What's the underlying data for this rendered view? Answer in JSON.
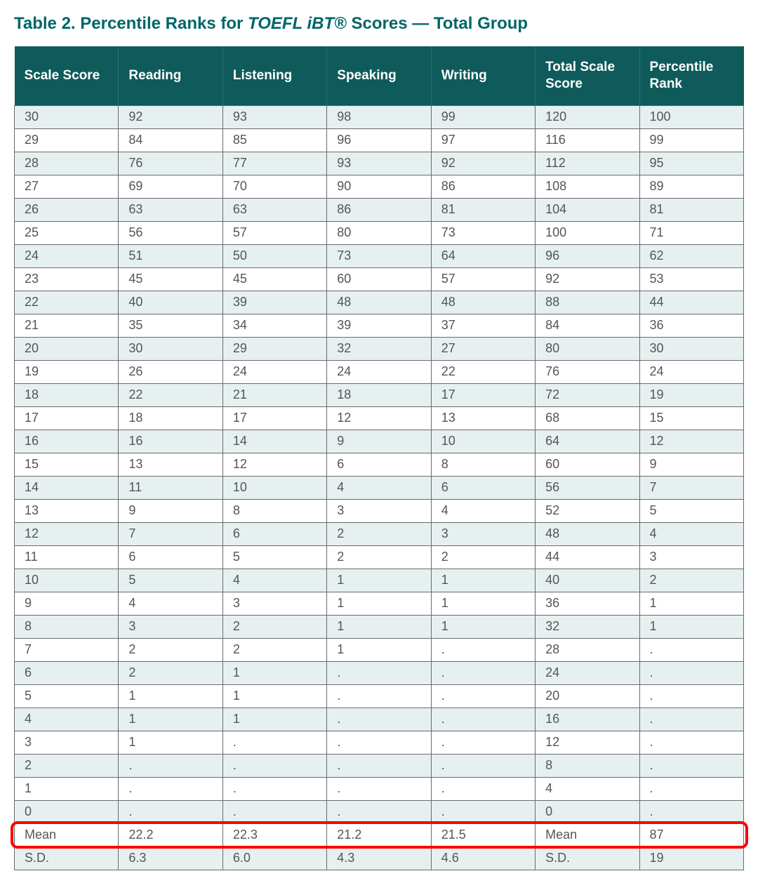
{
  "title": {
    "prefix": "Table 2. Percentile Ranks for ",
    "italic": "TOEFL iBT®",
    "suffix": " Scores — Total Group"
  },
  "styling": {
    "title_color": "#006666",
    "header_bg": "#0f5b5b",
    "header_text": "#ffffff",
    "row_odd_bg": "#e6f0f0",
    "row_even_bg": "#ffffff",
    "cell_text": "#555555",
    "border_color": "#6a6a6a",
    "highlight_border": "#ff0000",
    "title_fontsize": 24,
    "header_fontsize": 19,
    "cell_fontsize": 18
  },
  "table": {
    "columns": [
      "Scale Score",
      "Reading",
      "Listening",
      "Speaking",
      "Writing",
      "Total Scale Score",
      "Percentile Rank"
    ],
    "rows": [
      [
        "30",
        "92",
        "93",
        "98",
        "99",
        "120",
        "100"
      ],
      [
        "29",
        "84",
        "85",
        "96",
        "97",
        "116",
        "99"
      ],
      [
        "28",
        "76",
        "77",
        "93",
        "92",
        "112",
        "95"
      ],
      [
        "27",
        "69",
        "70",
        "90",
        "86",
        "108",
        "89"
      ],
      [
        "26",
        "63",
        "63",
        "86",
        "81",
        "104",
        "81"
      ],
      [
        "25",
        "56",
        "57",
        "80",
        "73",
        "100",
        "71"
      ],
      [
        "24",
        "51",
        "50",
        "73",
        "64",
        "96",
        "62"
      ],
      [
        "23",
        "45",
        "45",
        "60",
        "57",
        "92",
        "53"
      ],
      [
        "22",
        "40",
        "39",
        "48",
        "48",
        "88",
        "44"
      ],
      [
        "21",
        "35",
        "34",
        "39",
        "37",
        "84",
        "36"
      ],
      [
        "20",
        "30",
        "29",
        "32",
        "27",
        "80",
        "30"
      ],
      [
        "19",
        "26",
        "24",
        "24",
        "22",
        "76",
        "24"
      ],
      [
        "18",
        "22",
        "21",
        "18",
        "17",
        "72",
        "19"
      ],
      [
        "17",
        "18",
        "17",
        "12",
        "13",
        "68",
        "15"
      ],
      [
        "16",
        "16",
        "14",
        "9",
        "10",
        "64",
        "12"
      ],
      [
        "15",
        "13",
        "12",
        "6",
        "8",
        "60",
        "9"
      ],
      [
        "14",
        "11",
        "10",
        "4",
        "6",
        "56",
        "7"
      ],
      [
        "13",
        "9",
        "8",
        "3",
        "4",
        "52",
        "5"
      ],
      [
        "12",
        "7",
        "6",
        "2",
        "3",
        "48",
        "4"
      ],
      [
        "11",
        "6",
        "5",
        "2",
        "2",
        "44",
        "3"
      ],
      [
        "10",
        "5",
        "4",
        "1",
        "1",
        "40",
        "2"
      ],
      [
        "9",
        "4",
        "3",
        "1",
        "1",
        "36",
        "1"
      ],
      [
        "8",
        "3",
        "2",
        "1",
        "1",
        "32",
        "1"
      ],
      [
        "7",
        "2",
        "2",
        "1",
        ".",
        "28",
        "."
      ],
      [
        "6",
        "2",
        "1",
        ".",
        ".",
        "24",
        "."
      ],
      [
        "5",
        "1",
        "1",
        ".",
        ".",
        "20",
        "."
      ],
      [
        "4",
        "1",
        "1",
        ".",
        ".",
        "16",
        "."
      ],
      [
        "3",
        "1",
        ".",
        ".",
        ".",
        "12",
        "."
      ],
      [
        "2",
        ".",
        ".",
        ".",
        ".",
        "8",
        "."
      ],
      [
        "1",
        ".",
        ".",
        ".",
        ".",
        "4",
        "."
      ],
      [
        "0",
        ".",
        ".",
        ".",
        ".",
        "0",
        "."
      ],
      [
        "Mean",
        "22.2",
        "22.3",
        "21.2",
        "21.5",
        "Mean",
        "87"
      ],
      [
        "S.D.",
        "6.3",
        "6.0",
        "4.3",
        "4.6",
        "S.D.",
        "19"
      ]
    ],
    "highlight_row_index": 31
  }
}
